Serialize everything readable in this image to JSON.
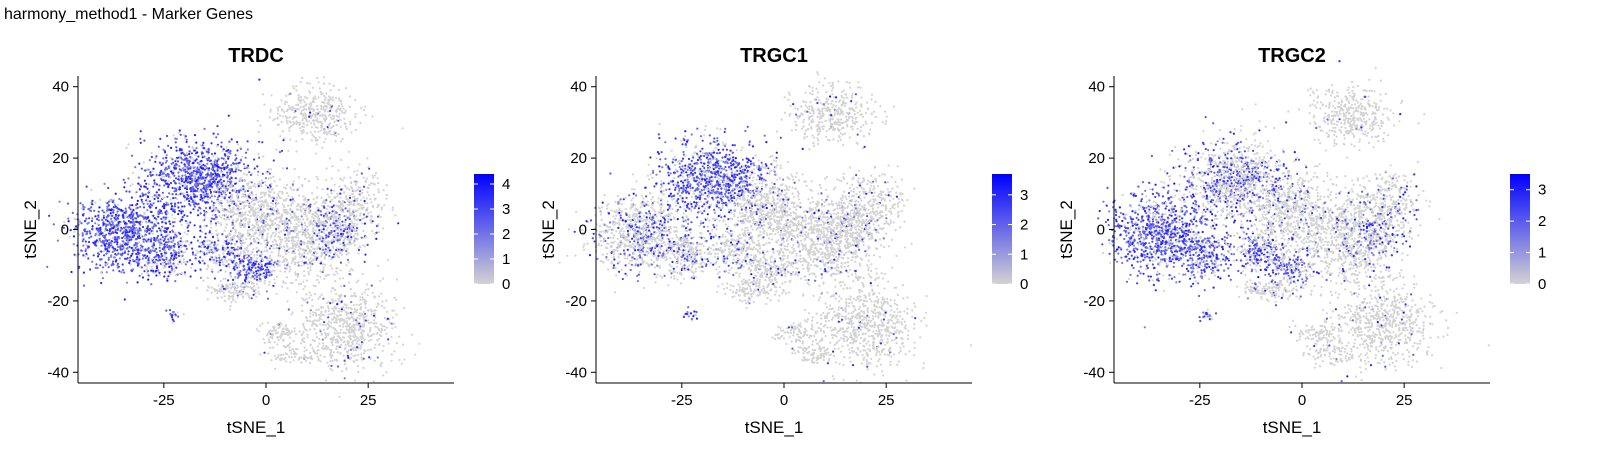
{
  "figure_title": "harmony_method1 - Marker Genes",
  "colors": {
    "low": "#d3d3d3",
    "high": "#0000ff",
    "axis": "#000000"
  },
  "chart_data": [
    {
      "type": "scatter",
      "title": "TRDC",
      "xlabel": "tSNE_1",
      "ylabel": "tSNE_2",
      "xlim": [
        -46,
        46
      ],
      "ylim": [
        -43,
        43
      ],
      "xticks": [
        -25,
        0,
        25
      ],
      "yticks": [
        -40,
        -20,
        0,
        20,
        40
      ],
      "legend": {
        "placement": "right",
        "min": 0,
        "max": 4.4,
        "ticks": [
          0,
          1,
          2,
          3,
          4
        ]
      },
      "clusters": [
        {
          "cx": -17,
          "cy": 14,
          "sx": 6.5,
          "sy": 5.5,
          "level": 0.78,
          "n": 950
        },
        {
          "cx": -35,
          "cy": -1,
          "sx": 6.0,
          "sy": 5.5,
          "level": 0.8,
          "n": 850
        },
        {
          "cx": -24,
          "cy": -7,
          "sx": 3.5,
          "sy": 3.5,
          "level": 0.55,
          "n": 250
        },
        {
          "cx": -11,
          "cy": -6,
          "sx": 3.5,
          "sy": 3.5,
          "level": 0.45,
          "n": 250
        },
        {
          "cx": -3,
          "cy": -11,
          "sx": 3.0,
          "sy": 3.0,
          "level": 0.7,
          "n": 200
        },
        {
          "cx": -3,
          "cy": 5,
          "sx": 5.0,
          "sy": 5.5,
          "level": 0.08,
          "n": 500
        },
        {
          "cx": 10,
          "cy": -2,
          "sx": 6.0,
          "sy": 6.5,
          "level": 0.07,
          "n": 750
        },
        {
          "cx": 18,
          "cy": 0,
          "sx": 4.0,
          "sy": 4.0,
          "level": 0.45,
          "n": 250
        },
        {
          "cx": 22,
          "cy": 8,
          "sx": 4.0,
          "sy": 4.0,
          "level": 0.08,
          "n": 220
        },
        {
          "cx": 12,
          "cy": 32,
          "sx": 5.0,
          "sy": 4.0,
          "level": 0.03,
          "n": 380
        },
        {
          "cx": 20,
          "cy": -27,
          "sx": 6.0,
          "sy": 6.0,
          "level": 0.05,
          "n": 650
        },
        {
          "cx": 3,
          "cy": -29,
          "sx": 2.5,
          "sy": 1.5,
          "level": 0.03,
          "n": 80
        },
        {
          "cx": 7,
          "cy": -35,
          "sx": 3.0,
          "sy": 1.5,
          "level": 0.03,
          "n": 80
        },
        {
          "cx": -23,
          "cy": -24,
          "sx": 0.8,
          "sy": 0.8,
          "level": 0.5,
          "n": 20
        },
        {
          "cx": -8,
          "cy": -17,
          "sx": 3.5,
          "sy": 1.5,
          "level": 0.05,
          "n": 120
        }
      ]
    },
    {
      "type": "scatter",
      "title": "TRGC1",
      "xlabel": "tSNE_1",
      "ylabel": "tSNE_2",
      "xlim": [
        -46,
        46
      ],
      "ylim": [
        -43,
        43
      ],
      "xticks": [
        -25,
        0,
        25
      ],
      "yticks": [
        -40,
        -20,
        0,
        20,
        40
      ],
      "legend": {
        "placement": "right",
        "min": 0,
        "max": 3.7,
        "ticks": [
          0,
          1,
          2,
          3
        ]
      },
      "clusters": [
        {
          "cx": -17,
          "cy": 14,
          "sx": 6.5,
          "sy": 5.5,
          "level": 0.65,
          "n": 950
        },
        {
          "cx": -35,
          "cy": -1,
          "sx": 6.0,
          "sy": 5.5,
          "level": 0.25,
          "n": 850
        },
        {
          "cx": -24,
          "cy": -7,
          "sx": 3.5,
          "sy": 3.5,
          "level": 0.2,
          "n": 250
        },
        {
          "cx": -11,
          "cy": -6,
          "sx": 3.5,
          "sy": 3.5,
          "level": 0.12,
          "n": 250
        },
        {
          "cx": -3,
          "cy": -11,
          "sx": 3.0,
          "sy": 3.0,
          "level": 0.1,
          "n": 200
        },
        {
          "cx": -3,
          "cy": 5,
          "sx": 5.0,
          "sy": 5.5,
          "level": 0.05,
          "n": 500
        },
        {
          "cx": 10,
          "cy": -2,
          "sx": 6.0,
          "sy": 6.5,
          "level": 0.05,
          "n": 750
        },
        {
          "cx": 18,
          "cy": 0,
          "sx": 4.0,
          "sy": 4.0,
          "level": 0.08,
          "n": 250
        },
        {
          "cx": 22,
          "cy": 8,
          "sx": 4.0,
          "sy": 4.0,
          "level": 0.05,
          "n": 220
        },
        {
          "cx": 12,
          "cy": 32,
          "sx": 5.0,
          "sy": 4.0,
          "level": 0.03,
          "n": 380
        },
        {
          "cx": 20,
          "cy": -27,
          "sx": 6.0,
          "sy": 6.0,
          "level": 0.03,
          "n": 650
        },
        {
          "cx": 3,
          "cy": -29,
          "sx": 2.5,
          "sy": 1.5,
          "level": 0.02,
          "n": 80
        },
        {
          "cx": 7,
          "cy": -35,
          "sx": 3.0,
          "sy": 1.5,
          "level": 0.02,
          "n": 80
        },
        {
          "cx": -23,
          "cy": -24,
          "sx": 0.8,
          "sy": 0.8,
          "level": 0.4,
          "n": 20
        },
        {
          "cx": -8,
          "cy": -17,
          "sx": 3.5,
          "sy": 1.5,
          "level": 0.03,
          "n": 120
        }
      ]
    },
    {
      "type": "scatter",
      "title": "TRGC2",
      "xlabel": "tSNE_1",
      "ylabel": "tSNE_2",
      "xlim": [
        -46,
        46
      ],
      "ylim": [
        -43,
        43
      ],
      "xticks": [
        -25,
        0,
        25
      ],
      "yticks": [
        -40,
        -20,
        0,
        20,
        40
      ],
      "legend": {
        "placement": "right",
        "min": 0,
        "max": 3.5,
        "ticks": [
          0,
          1,
          2,
          3
        ]
      },
      "clusters": [
        {
          "cx": -17,
          "cy": 14,
          "sx": 6.5,
          "sy": 5.5,
          "level": 0.35,
          "n": 950
        },
        {
          "cx": -35,
          "cy": -1,
          "sx": 6.0,
          "sy": 5.5,
          "level": 0.7,
          "n": 850
        },
        {
          "cx": -24,
          "cy": -7,
          "sx": 3.5,
          "sy": 3.5,
          "level": 0.6,
          "n": 250
        },
        {
          "cx": -11,
          "cy": -6,
          "sx": 3.5,
          "sy": 3.5,
          "level": 0.5,
          "n": 250
        },
        {
          "cx": -3,
          "cy": -11,
          "sx": 3.0,
          "sy": 3.0,
          "level": 0.5,
          "n": 200
        },
        {
          "cx": -3,
          "cy": 5,
          "sx": 5.0,
          "sy": 5.5,
          "level": 0.1,
          "n": 500
        },
        {
          "cx": 10,
          "cy": -2,
          "sx": 6.0,
          "sy": 6.5,
          "level": 0.07,
          "n": 750
        },
        {
          "cx": 18,
          "cy": 0,
          "sx": 4.0,
          "sy": 4.0,
          "level": 0.4,
          "n": 250
        },
        {
          "cx": 22,
          "cy": 8,
          "sx": 4.0,
          "sy": 4.0,
          "level": 0.1,
          "n": 220
        },
        {
          "cx": 12,
          "cy": 32,
          "sx": 5.0,
          "sy": 4.0,
          "level": 0.03,
          "n": 380
        },
        {
          "cx": 20,
          "cy": -27,
          "sx": 6.0,
          "sy": 6.0,
          "level": 0.03,
          "n": 650
        },
        {
          "cx": 3,
          "cy": -29,
          "sx": 2.5,
          "sy": 1.5,
          "level": 0.02,
          "n": 80
        },
        {
          "cx": 7,
          "cy": -35,
          "sx": 3.0,
          "sy": 1.5,
          "level": 0.02,
          "n": 80
        },
        {
          "cx": -23,
          "cy": -24,
          "sx": 0.8,
          "sy": 0.8,
          "level": 0.5,
          "n": 20
        },
        {
          "cx": -8,
          "cy": -17,
          "sx": 3.5,
          "sy": 1.5,
          "level": 0.05,
          "n": 120
        }
      ]
    }
  ]
}
